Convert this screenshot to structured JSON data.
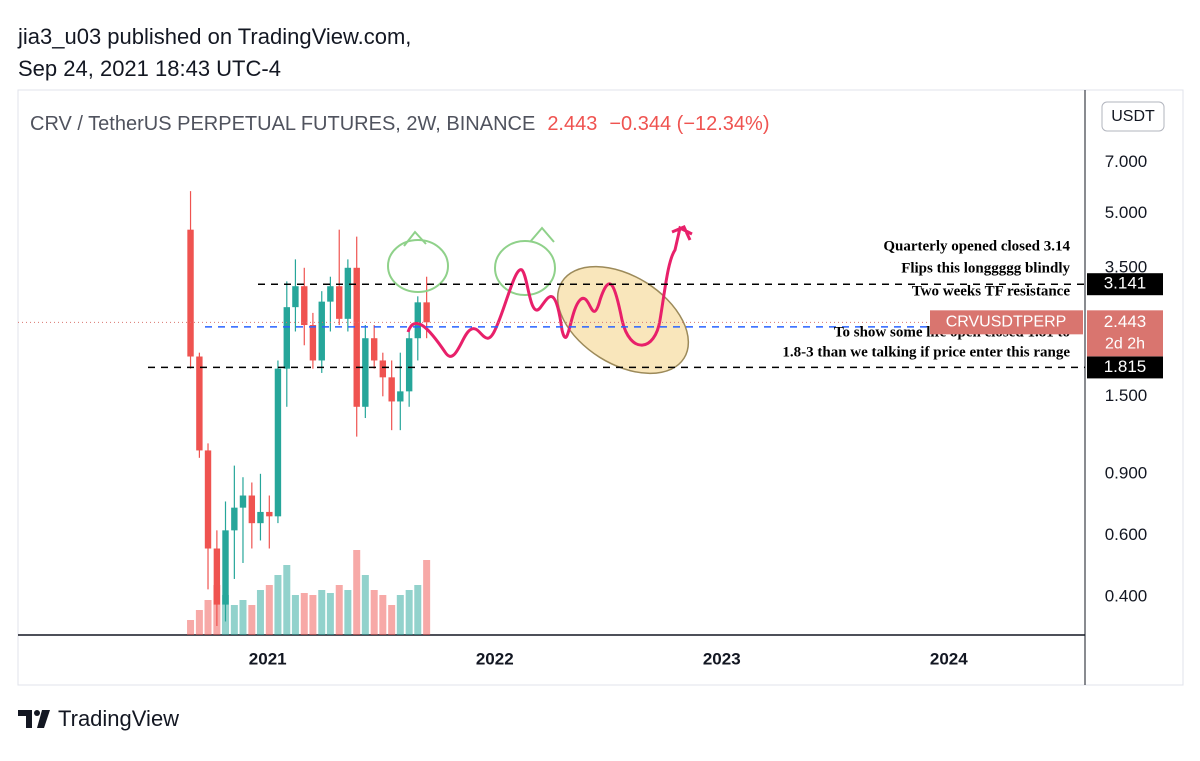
{
  "header": {
    "line1": "jia3_u03 published on TradingView.com,",
    "line2": "Sep 24, 2021 18:43 UTC-4"
  },
  "footer": {
    "brand": "TradingView"
  },
  "chart_data": {
    "type": "candlestick",
    "title": "CRV / TetherUS PERPETUAL FUTURES, 2W, BINANCE",
    "legend_price": "2.443",
    "legend_change": "−0.344 (−12.34%)",
    "currency": "USDT",
    "log_scale": true,
    "up_color": "#26a69a",
    "down_color": "#ef5350",
    "x": [
      2020.66,
      2020.699,
      2020.737,
      2020.776,
      2020.814,
      2020.853,
      2020.891,
      2020.93,
      2020.968,
      2021.007,
      2021.045,
      2021.084,
      2021.122,
      2021.161,
      2021.199,
      2021.238,
      2021.276,
      2021.315,
      2021.353,
      2021.392,
      2021.43,
      2021.469,
      2021.507,
      2021.546,
      2021.584,
      2021.623,
      2021.661,
      2021.7
    ],
    "open": [
      4.5,
      1.95,
      1.05,
      0.55,
      0.38,
      0.62,
      0.72,
      0.78,
      0.65,
      0.7,
      0.68,
      1.8,
      2.7,
      3.1,
      2.4,
      1.9,
      2.8,
      3.1,
      2.5,
      3.5,
      1.4,
      2.2,
      1.9,
      1.7,
      1.45,
      1.55,
      2.2,
      2.787
    ],
    "high": [
      5.8,
      2.0,
      1.1,
      0.62,
      0.75,
      0.95,
      0.88,
      0.85,
      0.9,
      0.78,
      1.9,
      3.2,
      3.7,
      3.5,
      2.6,
      3.0,
      3.3,
      4.5,
      3.7,
      4.3,
      2.4,
      2.4,
      2.0,
      1.9,
      2.0,
      2.3,
      2.9,
      3.3
    ],
    "low": [
      1.8,
      1.0,
      0.42,
      0.33,
      0.34,
      0.45,
      0.5,
      0.55,
      0.58,
      0.55,
      0.65,
      1.4,
      2.3,
      2.1,
      1.8,
      1.75,
      2.3,
      2.4,
      2.3,
      1.15,
      1.3,
      1.8,
      1.5,
      1.2,
      1.2,
      1.4,
      1.9,
      2.2
    ],
    "close": [
      1.95,
      1.05,
      0.55,
      0.38,
      0.62,
      0.72,
      0.78,
      0.65,
      0.7,
      0.68,
      1.8,
      2.7,
      3.1,
      2.4,
      1.9,
      2.8,
      3.1,
      2.5,
      3.5,
      1.4,
      2.2,
      1.9,
      1.7,
      1.45,
      1.55,
      2.2,
      2.787,
      2.443
    ],
    "volume": [
      15,
      25,
      35,
      50,
      40,
      30,
      35,
      30,
      45,
      50,
      60,
      70,
      40,
      42,
      40,
      45,
      42,
      50,
      45,
      85,
      60,
      45,
      40,
      30,
      40,
      45,
      50,
      75
    ],
    "xlim": [
      2019.9,
      2024.6
    ],
    "xticks": [
      2021,
      2022,
      2023,
      2024
    ],
    "ylim": [
      0.311,
      11.3
    ],
    "yticks": [
      {
        "value": 7,
        "label": "7.000"
      },
      {
        "value": 5,
        "label": "5.000"
      },
      {
        "value": 3.5,
        "label": "3.500"
      },
      {
        "value": 1.5,
        "label": "1.500"
      },
      {
        "value": 0.9,
        "label": "0.900"
      },
      {
        "value": 0.6,
        "label": "0.600"
      },
      {
        "value": 0.4,
        "label": "0.400"
      }
    ],
    "levels": [
      {
        "value": 3.141,
        "color": "#000000"
      },
      {
        "value": 1.815,
        "color": "#000000"
      },
      {
        "value": 2.37,
        "color": "#2962ff"
      }
    ],
    "current_price": {
      "symbol": "CRVUSDTPERP",
      "value": 2.443,
      "countdown": "2d 2h",
      "color": "#d9756f"
    },
    "annotations": [
      "Quarterly opened  closed 3.14",
      "Flips this longgggg blindly",
      "Two weeks TF resistance",
      "To show some life  open closed 1.81 to",
      "1.8-3 than we talking if price enter this range"
    ]
  }
}
